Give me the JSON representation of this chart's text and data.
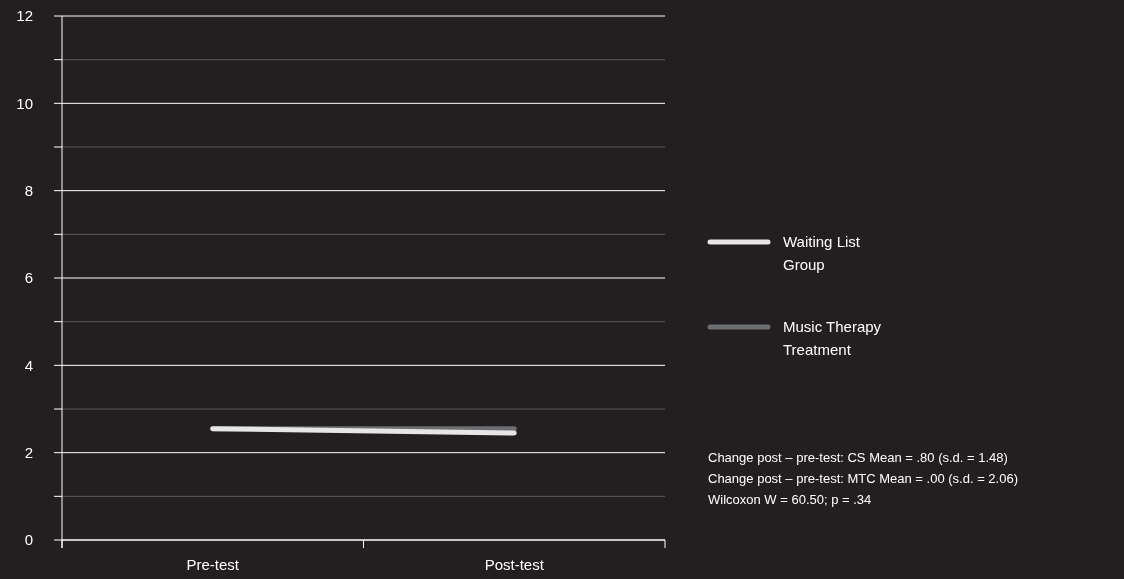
{
  "chart_data": {
    "type": "line",
    "categories": [
      "Pre-test",
      "Post-test"
    ],
    "series": [
      {
        "name": "Waiting List Group",
        "color": "#e6e6e6",
        "values": [
          2.55,
          2.45
        ]
      },
      {
        "name": "Music Therapy Treatment",
        "color": "#6d6e71",
        "values": [
          2.55,
          2.55
        ]
      }
    ],
    "ylim": [
      0,
      12
    ],
    "yticks": [
      0,
      {
        "value": 1,
        "label": null
      },
      2,
      {
        "value": 3,
        "label": null
      },
      4,
      {
        "value": 5,
        "label": null
      },
      6,
      {
        "value": 7,
        "label": null
      },
      8,
      {
        "value": 9,
        "label": null
      },
      10,
      {
        "value": 11,
        "label": null
      },
      12
    ],
    "grid": "y",
    "legend": "right",
    "marker": "none",
    "line_style": "solid",
    "annotations": [
      "Change post – pre-test: CS Mean = .80 (s.d. = 1.48)",
      "Change post – pre-test: MTC Mean = .00 (s.d. = 2.06)",
      "Wilcoxon W = 60.50; p = .34"
    ]
  }
}
